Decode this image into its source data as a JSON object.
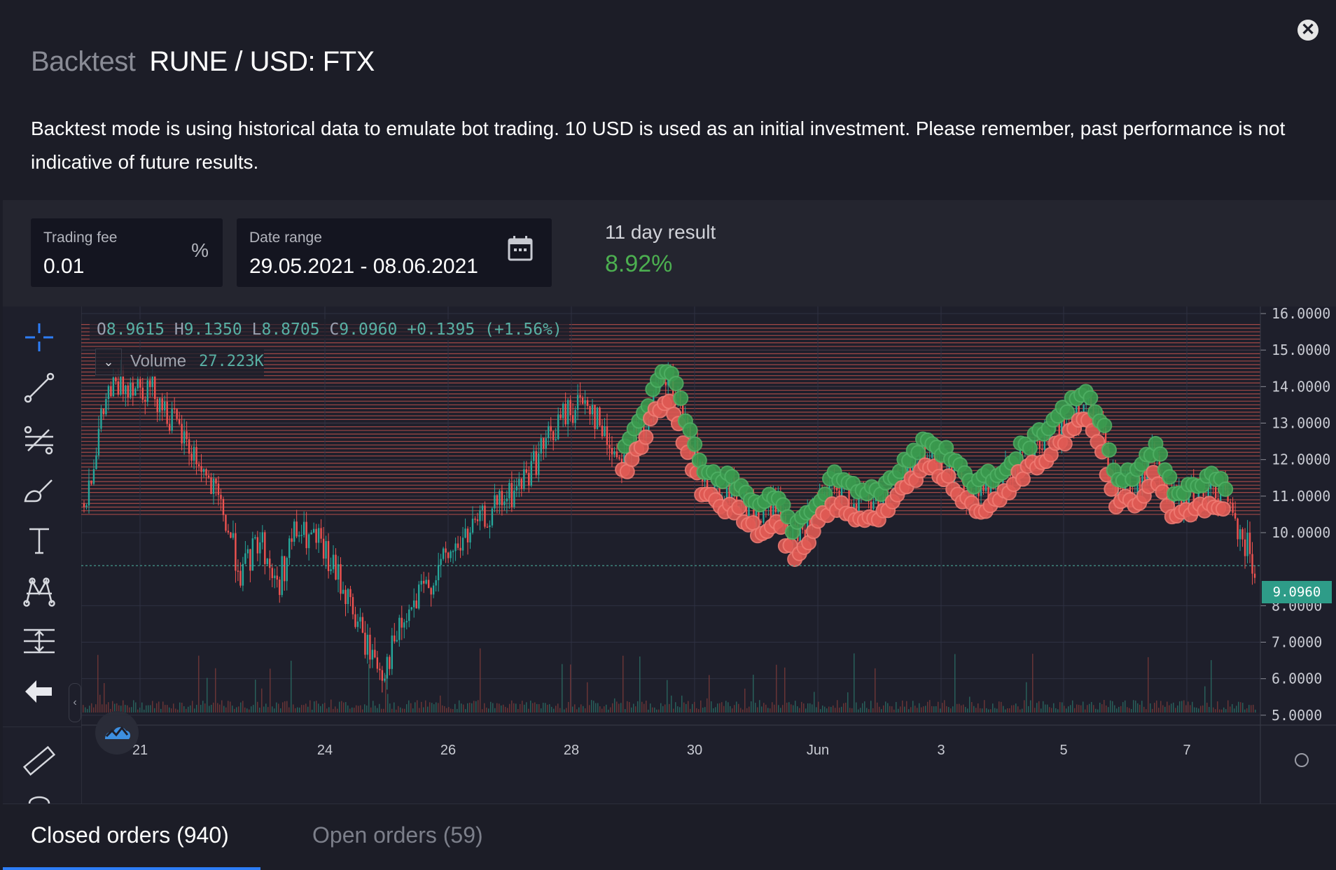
{
  "header": {
    "muted_title": "Backtest",
    "pair_title": "RUNE / USD: FTX",
    "close_label": "✕"
  },
  "description": "Backtest mode is using historical data to emulate bot trading. 10 USD is used as an initial investment. Please remember, past performance is not indicative of future results.",
  "fee": {
    "label": "Trading fee",
    "value": "0.01",
    "suffix": "%"
  },
  "date_range": {
    "label": "Date range",
    "value": "29.05.2021 - 08.06.2021"
  },
  "result": {
    "label": "11 day result",
    "value": "8.92%",
    "color": "#4caf50"
  },
  "legend": {
    "o_label": "O",
    "o": "8.9615",
    "h_label": "H",
    "h": "9.1350",
    "l_label": "L",
    "l": "8.8705",
    "c_label": "C",
    "c": "9.0960",
    "change": "+0.1395 (+1.56%)"
  },
  "volume": {
    "label": "Volume",
    "value": "27.223K",
    "chevron": "⌄"
  },
  "collapse_glyph": "‹",
  "tabs": [
    {
      "label": "Closed orders (940)",
      "active": true
    },
    {
      "label": "Open orders (59)",
      "active": false
    }
  ],
  "chart_data": {
    "type": "candlestick",
    "symbol": "RUNE / USD",
    "current_price": 9.096,
    "current_price_label": "9.0960",
    "y_ticks": [
      "16.0000",
      "15.0000",
      "14.0000",
      "13.0000",
      "12.0000",
      "11.0000",
      "10.0000",
      "8.0000",
      "7.0000",
      "6.0000",
      "5.0000"
    ],
    "ylim": [
      5,
      16.2
    ],
    "x_ticks": [
      "21",
      "24",
      "26",
      "28",
      "30",
      "Jun",
      "3",
      "5",
      "7"
    ],
    "grid_levels_range": [
      10.5,
      15.7
    ],
    "grid_level_step": 0.1,
    "price_path": [
      [
        0,
        10.8
      ],
      [
        0.02,
        13.8
      ],
      [
        0.04,
        14.2
      ],
      [
        0.06,
        13.9
      ],
      [
        0.08,
        12.8
      ],
      [
        0.1,
        11.8
      ],
      [
        0.12,
        10.4
      ],
      [
        0.135,
        8.8
      ],
      [
        0.15,
        9.9
      ],
      [
        0.165,
        8.5
      ],
      [
        0.18,
        10.0
      ],
      [
        0.2,
        9.7
      ],
      [
        0.22,
        8.6
      ],
      [
        0.24,
        7.0
      ],
      [
        0.255,
        6.2
      ],
      [
        0.27,
        7.3
      ],
      [
        0.29,
        8.4
      ],
      [
        0.31,
        9.3
      ],
      [
        0.33,
        10.0
      ],
      [
        0.35,
        10.6
      ],
      [
        0.37,
        11.2
      ],
      [
        0.39,
        12.2
      ],
      [
        0.41,
        13.2
      ],
      [
        0.43,
        13.7
      ],
      [
        0.445,
        12.6
      ],
      [
        0.46,
        12.0
      ],
      [
        0.475,
        12.8
      ],
      [
        0.49,
        13.8
      ],
      [
        0.5,
        14.2
      ],
      [
        0.515,
        12.7
      ],
      [
        0.53,
        11.4
      ],
      [
        0.545,
        11.2
      ],
      [
        0.56,
        11.0
      ],
      [
        0.575,
        10.4
      ],
      [
        0.59,
        10.8
      ],
      [
        0.605,
        9.8
      ],
      [
        0.62,
        10.3
      ],
      [
        0.64,
        11.2
      ],
      [
        0.66,
        10.9
      ],
      [
        0.68,
        10.8
      ],
      [
        0.7,
        11.6
      ],
      [
        0.72,
        12.2
      ],
      [
        0.74,
        11.8
      ],
      [
        0.76,
        11.0
      ],
      [
        0.78,
        11.3
      ],
      [
        0.8,
        12.0
      ],
      [
        0.82,
        12.4
      ],
      [
        0.84,
        13.1
      ],
      [
        0.855,
        13.5
      ],
      [
        0.87,
        12.7
      ],
      [
        0.88,
        11.2
      ],
      [
        0.9,
        11.3
      ],
      [
        0.915,
        12.1
      ],
      [
        0.93,
        10.8
      ],
      [
        0.95,
        11.0
      ],
      [
        0.97,
        11.2
      ],
      [
        0.985,
        10.3
      ],
      [
        1.0,
        9.1
      ]
    ],
    "filled_order_range": {
      "x_from": 0.46,
      "x_to": 0.975
    }
  },
  "colors": {
    "up": "#26a69a",
    "down": "#ef5350",
    "sell_marker": "#e05a54",
    "buy_marker": "#3a9a4e",
    "accent": "#2d7df6"
  }
}
